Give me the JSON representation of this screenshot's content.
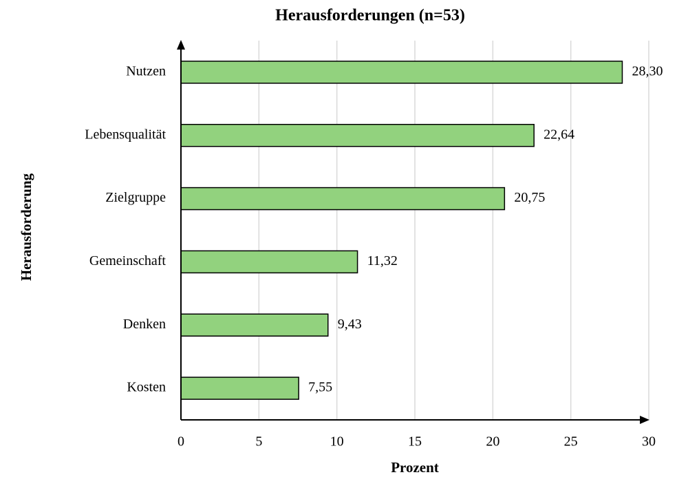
{
  "chart_data": {
    "type": "bar",
    "orientation": "horizontal",
    "title": "Herausforderungen (n=53)",
    "x_label": "Prozent",
    "y_label": "Herausforderung",
    "categories": [
      "Nutzen",
      "Lebensqualität",
      "Zielgruppe",
      "Gemeinschaft",
      "Denken",
      "Kosten"
    ],
    "values": [
      28.3,
      22.64,
      20.75,
      11.32,
      9.43,
      7.55
    ],
    "value_labels": [
      "28,30",
      "22,64",
      "20,75",
      "11,32",
      "9,43",
      "7,55"
    ],
    "color": "#92d27e",
    "xlim": [
      0,
      30
    ],
    "xticks": [
      0,
      5,
      10,
      15,
      20,
      25,
      30
    ],
    "grid": true
  }
}
